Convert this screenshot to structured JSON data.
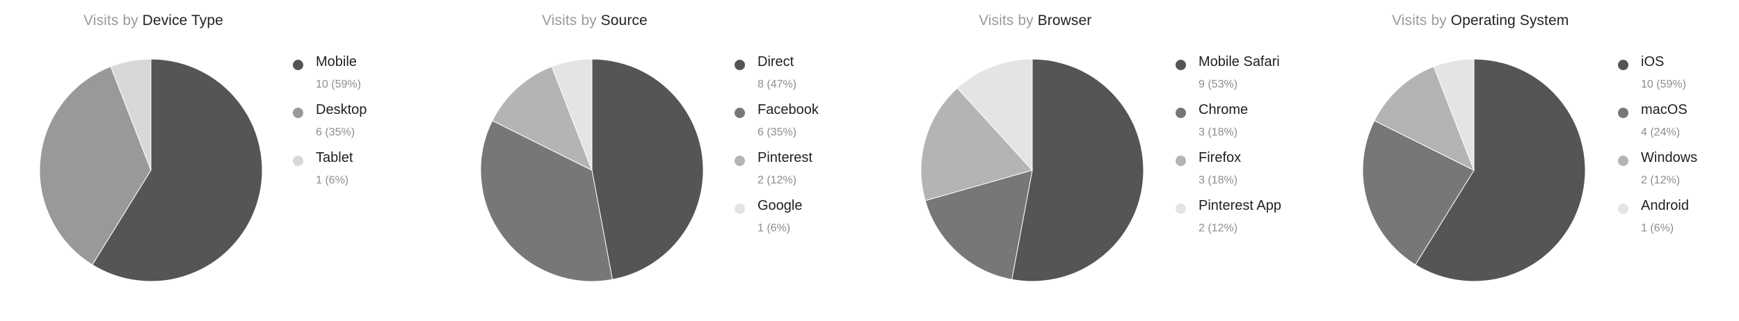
{
  "panels": [
    {
      "prefix": "Visits by",
      "dimension": "Device Type"
    },
    {
      "prefix": "Visits by",
      "dimension": "Source"
    },
    {
      "prefix": "Visits by",
      "dimension": "Browser"
    },
    {
      "prefix": "Visits by",
      "dimension": "Operating System"
    }
  ],
  "chart_data": [
    {
      "type": "pie",
      "title": "Visits by Device Type",
      "slices": [
        {
          "label": "Mobile",
          "value": 10,
          "percent_text": "10 (59%)",
          "color": "#555555"
        },
        {
          "label": "Desktop",
          "value": 6,
          "percent_text": "6 (35%)",
          "color": "#999999"
        },
        {
          "label": "Tablet",
          "value": 1,
          "percent_text": "1 (6%)",
          "color": "#d8d8d8"
        }
      ],
      "legend_position": "right"
    },
    {
      "type": "pie",
      "title": "Visits by Source",
      "slices": [
        {
          "label": "Direct",
          "value": 8,
          "percent_text": "8 (47%)",
          "color": "#555555"
        },
        {
          "label": "Facebook",
          "value": 6,
          "percent_text": "6 (35%)",
          "color": "#777777"
        },
        {
          "label": "Pinterest",
          "value": 2,
          "percent_text": "2 (12%)",
          "color": "#b4b4b4"
        },
        {
          "label": "Google",
          "value": 1,
          "percent_text": "1 (6%)",
          "color": "#e4e4e4"
        }
      ],
      "legend_position": "right"
    },
    {
      "type": "pie",
      "title": "Visits by Browser",
      "slices": [
        {
          "label": "Mobile Safari",
          "value": 9,
          "percent_text": "9 (53%)",
          "color": "#555555"
        },
        {
          "label": "Chrome",
          "value": 3,
          "percent_text": "3 (18%)",
          "color": "#777777"
        },
        {
          "label": "Firefox",
          "value": 3,
          "percent_text": "3 (18%)",
          "color": "#b4b4b4"
        },
        {
          "label": "Pinterest App",
          "value": 2,
          "percent_text": "2 (12%)",
          "color": "#e4e4e4"
        }
      ],
      "legend_position": "right"
    },
    {
      "type": "pie",
      "title": "Visits by Operating System",
      "slices": [
        {
          "label": "iOS",
          "value": 10,
          "percent_text": "10 (59%)",
          "color": "#555555"
        },
        {
          "label": "macOS",
          "value": 4,
          "percent_text": "4 (24%)",
          "color": "#777777"
        },
        {
          "label": "Windows",
          "value": 2,
          "percent_text": "2 (12%)",
          "color": "#b4b4b4"
        },
        {
          "label": "Android",
          "value": 1,
          "percent_text": "1 (6%)",
          "color": "#e4e4e4"
        }
      ],
      "legend_position": "right"
    }
  ]
}
